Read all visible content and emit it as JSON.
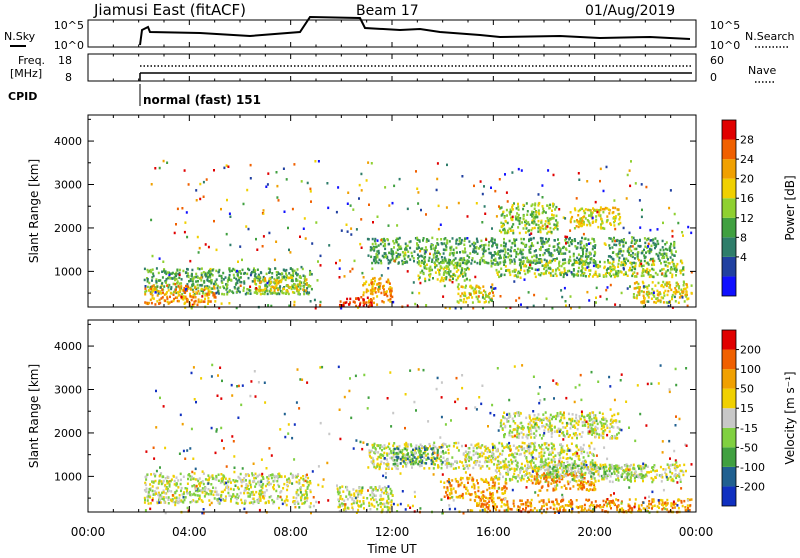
{
  "header": {
    "title": "Jiamusi East (fitACF)",
    "beam": "Beam 17",
    "date": "01/Aug/2019"
  },
  "noise_panel": {
    "left_label": "N.Sky",
    "right_label": "N.Search",
    "left_ticks": [
      "10^5",
      "10^0"
    ],
    "right_ticks": [
      "10^5",
      "10^0"
    ]
  },
  "freq_panel": {
    "left_label_line1": "Freq.",
    "left_label_line2": "[MHz]",
    "right_label": "Nave",
    "left_ticks": [
      "18",
      "8"
    ],
    "right_ticks": [
      "60",
      "0"
    ]
  },
  "cpid": {
    "label": "CPID",
    "mode": "normal (fast) 151"
  },
  "x_axis": {
    "label": "Time UT",
    "ticks": [
      "00:00",
      "04:00",
      "08:00",
      "12:00",
      "16:00",
      "20:00",
      "00:00"
    ]
  },
  "chart_data": [
    {
      "type": "heatmap",
      "panel": "power",
      "ylabel": "Slant Range [km]",
      "yticks": [
        1000,
        2000,
        3000,
        4000
      ],
      "ylim": [
        180,
        4600
      ],
      "xlim_hours": [
        0,
        24
      ],
      "colorbar_label": "Power [dB]",
      "colorbar_ticks": [
        "28",
        "24",
        "20",
        "16",
        "12",
        "8",
        "4"
      ],
      "colors": [
        "#1010ff",
        "#2040a0",
        "#2e7d6a",
        "#40a040",
        "#8fd030",
        "#f0d000",
        "#f0a000",
        "#f06000",
        "#e00000"
      ],
      "regions": [
        {
          "t": [
            2.2,
            8.8
          ],
          "r": [
            500,
            1100
          ],
          "level": 3
        },
        {
          "t": [
            2.2,
            5.0
          ],
          "r": [
            250,
            700
          ],
          "level": 6
        },
        {
          "t": [
            6.5,
            8.6
          ],
          "r": [
            500,
            900
          ],
          "level": 5
        },
        {
          "t": [
            9.8,
            11.2
          ],
          "r": [
            200,
            450
          ],
          "level": 8
        },
        {
          "t": [
            10.8,
            12.0
          ],
          "r": [
            300,
            900
          ],
          "level": 6
        },
        {
          "t": [
            11.0,
            20.0
          ],
          "r": [
            1200,
            1800
          ],
          "level": 3
        },
        {
          "t": [
            13.0,
            15.0
          ],
          "r": [
            800,
            1300
          ],
          "level": 4
        },
        {
          "t": [
            14.5,
            16.0
          ],
          "r": [
            300,
            700
          ],
          "level": 5
        },
        {
          "t": [
            16.0,
            23.5
          ],
          "r": [
            900,
            1300
          ],
          "level": 4
        },
        {
          "t": [
            16.2,
            18.5
          ],
          "r": [
            1900,
            2600
          ],
          "level": 4
        },
        {
          "t": [
            19.0,
            21.0
          ],
          "r": [
            2000,
            2500
          ],
          "level": 5
        },
        {
          "t": [
            20.5,
            23.2
          ],
          "r": [
            1300,
            1800
          ],
          "level": 3
        },
        {
          "t": [
            21.5,
            23.8
          ],
          "r": [
            300,
            800
          ],
          "level": 5
        }
      ]
    },
    {
      "type": "heatmap",
      "panel": "velocity",
      "ylabel": "Slant Range [km]",
      "yticks": [
        1000,
        2000,
        3000,
        4000
      ],
      "ylim": [
        180,
        4600
      ],
      "xlim_hours": [
        0,
        24
      ],
      "colorbar_label": "Velocity [m s⁻¹]",
      "colorbar_ticks": [
        "200",
        "100",
        "50",
        "15",
        "-15",
        "-50",
        "-100",
        "-200"
      ],
      "colors": [
        "#1030c0",
        "#206090",
        "#40a040",
        "#80d040",
        "#c8c8c8",
        "#f0d000",
        "#f0a000",
        "#f06000",
        "#e00000"
      ],
      "regions": [
        {
          "t": [
            2.2,
            8.8
          ],
          "r": [
            400,
            1100
          ],
          "level": 4
        },
        {
          "t": [
            9.8,
            12.0
          ],
          "r": [
            200,
            800
          ],
          "level": 4
        },
        {
          "t": [
            11.0,
            20.0
          ],
          "r": [
            1200,
            1800
          ],
          "level": 4
        },
        {
          "t": [
            12.0,
            14.0
          ],
          "r": [
            1300,
            1700
          ],
          "level": 2
        },
        {
          "t": [
            14.0,
            16.5
          ],
          "r": [
            500,
            1000
          ],
          "level": 6
        },
        {
          "t": [
            16.0,
            23.5
          ],
          "r": [
            900,
            1300
          ],
          "level": 4
        },
        {
          "t": [
            17.5,
            20.0
          ],
          "r": [
            700,
            1100
          ],
          "level": 6
        },
        {
          "t": [
            18.0,
            22.0
          ],
          "r": [
            1000,
            1300
          ],
          "level": 3
        },
        {
          "t": [
            16.2,
            21.0
          ],
          "r": [
            1900,
            2500
          ],
          "level": 4
        },
        {
          "t": [
            15.0,
            23.8
          ],
          "r": [
            200,
            500
          ],
          "level": 6
        }
      ]
    }
  ]
}
